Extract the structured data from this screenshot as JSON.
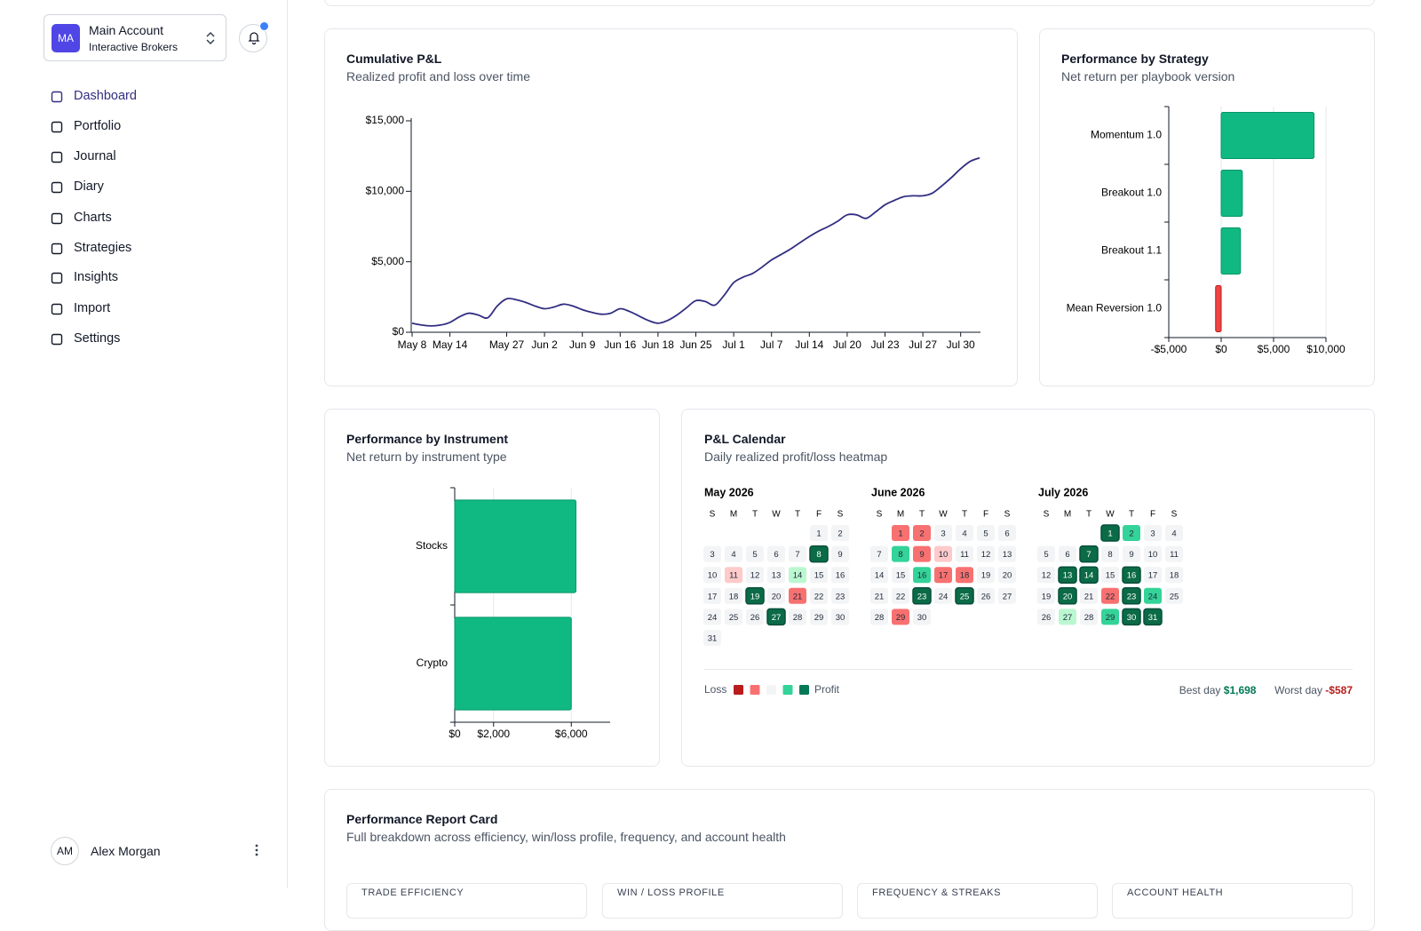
{
  "sidebar": {
    "account": {
      "initials": "MA",
      "name": "Main Account",
      "broker": "Interactive Brokers"
    },
    "nav": [
      "Dashboard",
      "Portfolio",
      "Journal",
      "Diary",
      "Charts",
      "Strategies",
      "Insights",
      "Import",
      "Settings"
    ],
    "active": "Dashboard",
    "user": {
      "initials": "AM",
      "name": "Alex Morgan"
    }
  },
  "chart_data": [
    {
      "type": "line",
      "title": "Cumulative P&L",
      "subtitle": "Realized profit and loss over time",
      "categories": [
        "May 8",
        null,
        null,
        null,
        "May 14",
        null,
        null,
        null,
        null,
        null,
        "May 27",
        null,
        null,
        null,
        "Jun 2",
        null,
        null,
        null,
        "Jun 9",
        null,
        null,
        null,
        "Jun 16",
        null,
        null,
        null,
        "Jun 18",
        null,
        null,
        null,
        "Jun 25",
        null,
        null,
        null,
        "Jul 1",
        null,
        null,
        null,
        "Jul 7",
        null,
        null,
        null,
        "Jul 14",
        null,
        null,
        null,
        "Jul 20",
        null,
        null,
        null,
        "Jul 23",
        null,
        null,
        null,
        "Jul 27",
        null,
        null,
        null,
        "Jul 30",
        null,
        null
      ],
      "values": [
        640,
        510,
        450,
        510,
        700,
        1090,
        1350,
        1220,
        1030,
        1860,
        2370,
        2310,
        2120,
        1860,
        1670,
        1790,
        1990,
        1860,
        1600,
        1410,
        1280,
        1350,
        1670,
        1470,
        1150,
        830,
        640,
        830,
        1220,
        1730,
        2240,
        2180,
        1920,
        2630,
        3520,
        3910,
        4170,
        4620,
        5130,
        5510,
        5900,
        6350,
        6790,
        7180,
        7500,
        7880,
        8330,
        8330,
        8080,
        8530,
        9040,
        9360,
        9620,
        9680,
        9680,
        9870,
        10380,
        10960,
        11600,
        12120,
        12370
      ],
      "color": "#312e81",
      "ylim": [
        0,
        15000
      ],
      "yticks": [
        {
          "value": 0,
          "label": "$0"
        },
        {
          "value": 5000,
          "label": "$5,000"
        },
        {
          "value": 10000,
          "label": "$10,000"
        },
        {
          "value": 15000,
          "label": "$15,000"
        }
      ]
    },
    {
      "type": "bar",
      "orientation": "horizontal",
      "title": "Performance by Strategy",
      "subtitle": "Net return per playbook version",
      "categories": [
        "Momentum 1.0",
        "Breakout 1.0",
        "Breakout 1.1",
        "Mean Reversion 1.0"
      ],
      "values": [
        8860,
        2020,
        1840,
        -530
      ],
      "color": "#10b981",
      "negative_color": "#ef4444",
      "xlim": [
        -5000,
        10000
      ],
      "xticks": [
        {
          "value": -5000,
          "label": "-$5,000"
        },
        {
          "value": 0,
          "label": "$0"
        },
        {
          "value": 5000,
          "label": "$5,000"
        },
        {
          "value": 10000,
          "label": "$10,000"
        }
      ],
      "grid": true
    },
    {
      "type": "bar",
      "orientation": "horizontal",
      "title": "Performance by Instrument",
      "subtitle": "Net return by instrument type",
      "categories": [
        "Stocks",
        "Crypto"
      ],
      "values": [
        6240,
        6000
      ],
      "color": "#10b981",
      "negative_color": "#ef4444",
      "xlim": [
        0,
        8000
      ],
      "xticks": [
        {
          "value": 0,
          "label": "$0"
        },
        {
          "value": 2000,
          "label": "$2,000"
        },
        {
          "value": 6000,
          "label": "$6,000"
        }
      ],
      "grid": true
    }
  ],
  "calendar": {
    "title": "P&L Calendar",
    "subtitle": "Daily realized profit/loss heatmap",
    "weekdays": [
      "S",
      "M",
      "T",
      "W",
      "T",
      "F",
      "S"
    ],
    "palette": {
      "-2": "#f87171",
      "-1": "#fecaca",
      "0": "#f3f4f6",
      "1": "#bbf7d0",
      "2": "#34d399",
      "3": "#0b6b47"
    },
    "months": [
      {
        "name": "May 2026",
        "days": [
          1,
          2,
          3,
          4,
          5,
          6,
          7,
          8,
          9,
          10,
          11,
          12,
          13,
          14,
          15,
          16,
          17,
          18,
          19,
          20,
          21,
          22,
          23,
          24,
          25,
          26,
          27,
          28,
          29,
          30,
          31
        ],
        "levels": [
          0,
          0,
          0,
          0,
          0,
          0,
          0,
          3,
          0,
          0,
          -1,
          0,
          0,
          1,
          0,
          0,
          0,
          0,
          3,
          0,
          -2,
          0,
          0,
          0,
          0,
          0,
          3,
          0,
          0,
          0,
          0
        ]
      },
      {
        "name": "June 2026",
        "days": [
          1,
          2,
          3,
          4,
          5,
          6,
          7,
          8,
          9,
          10,
          11,
          12,
          13,
          14,
          15,
          16,
          17,
          18,
          19,
          20,
          21,
          22,
          23,
          24,
          25,
          26,
          27,
          28,
          29,
          30
        ],
        "levels": [
          -2,
          -2,
          0,
          0,
          0,
          0,
          0,
          2,
          -2,
          -1,
          0,
          0,
          0,
          0,
          0,
          2,
          -2,
          -2,
          0,
          0,
          0,
          0,
          3,
          0,
          3,
          0,
          0,
          0,
          -2,
          0
        ]
      },
      {
        "name": "July 2026",
        "days": [
          1,
          2,
          3,
          4,
          5,
          6,
          7,
          8,
          9,
          10,
          11,
          12,
          13,
          14,
          15,
          16,
          17,
          18,
          19,
          20,
          21,
          22,
          23,
          24,
          25,
          26,
          27,
          28,
          29,
          30,
          31
        ],
        "levels": [
          3,
          2,
          0,
          0,
          0,
          0,
          3,
          0,
          0,
          0,
          0,
          0,
          3,
          3,
          0,
          3,
          0,
          0,
          0,
          3,
          0,
          -2,
          3,
          2,
          0,
          0,
          1,
          0,
          2,
          3,
          3
        ]
      }
    ],
    "legend": {
      "loss": "Loss",
      "profit": "Profit",
      "colors": [
        "#b91c1c",
        "#f87171",
        "#f3f4f6",
        "#34d399",
        "#047857"
      ]
    },
    "best_day": {
      "label": "Best day",
      "value": "$1,698"
    },
    "worst_day": {
      "label": "Worst day",
      "value": "-$587"
    }
  },
  "report_card": {
    "title": "Performance Report Card",
    "subtitle": "Full breakdown across efficiency, win/loss profile, frequency, and account health",
    "sections": [
      "TRADE EFFICIENCY",
      "WIN / LOSS PROFILE",
      "FREQUENCY & STREAKS",
      "ACCOUNT HEALTH"
    ]
  }
}
